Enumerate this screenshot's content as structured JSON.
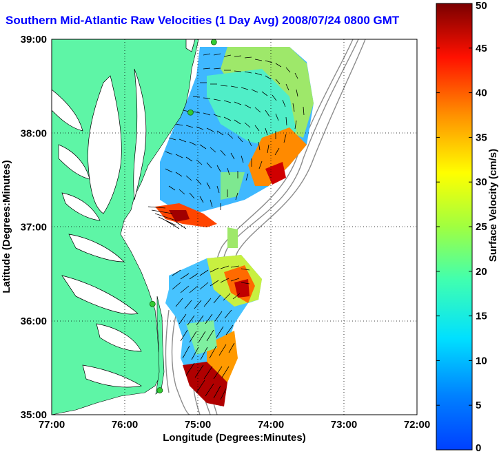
{
  "title": "Southern Mid-Atlantic Raw Velocities (1 Day Avg) 2008/07/24 0800 GMT",
  "x_axis": {
    "label": "Longitude (Degrees:Minutes)",
    "ticks": [
      "77:00",
      "76:00",
      "75:00",
      "74:00",
      "73:00",
      "72:00"
    ]
  },
  "y_axis": {
    "label": "Latitude (Degrees:Minutes)",
    "ticks": [
      "39:00",
      "38:00",
      "37:00",
      "36:00",
      "35:00"
    ]
  },
  "colorbar": {
    "label": "Surface Velocity (cm/s)",
    "ticks": [
      "50",
      "45",
      "40",
      "35",
      "30",
      "25",
      "20",
      "15",
      "10",
      "5",
      "0"
    ],
    "min": 0,
    "max": 50,
    "colormap": "jet"
  },
  "colors": {
    "title": "#0000ff",
    "land": "#5ef5a6",
    "water": "#ffffff",
    "bathymetry": "#8c8c8c",
    "station": "#33cc33",
    "grid": "#000000"
  },
  "map": {
    "lon_range": [
      -77,
      -72
    ],
    "lat_range": [
      35,
      39
    ],
    "stations": [
      {
        "lon": -74.78,
        "lat": 38.97
      },
      {
        "lon": -75.1,
        "lat": 38.22
      },
      {
        "lon": -75.62,
        "lat": 36.18
      },
      {
        "lon": -75.52,
        "lat": 35.26
      }
    ]
  }
}
